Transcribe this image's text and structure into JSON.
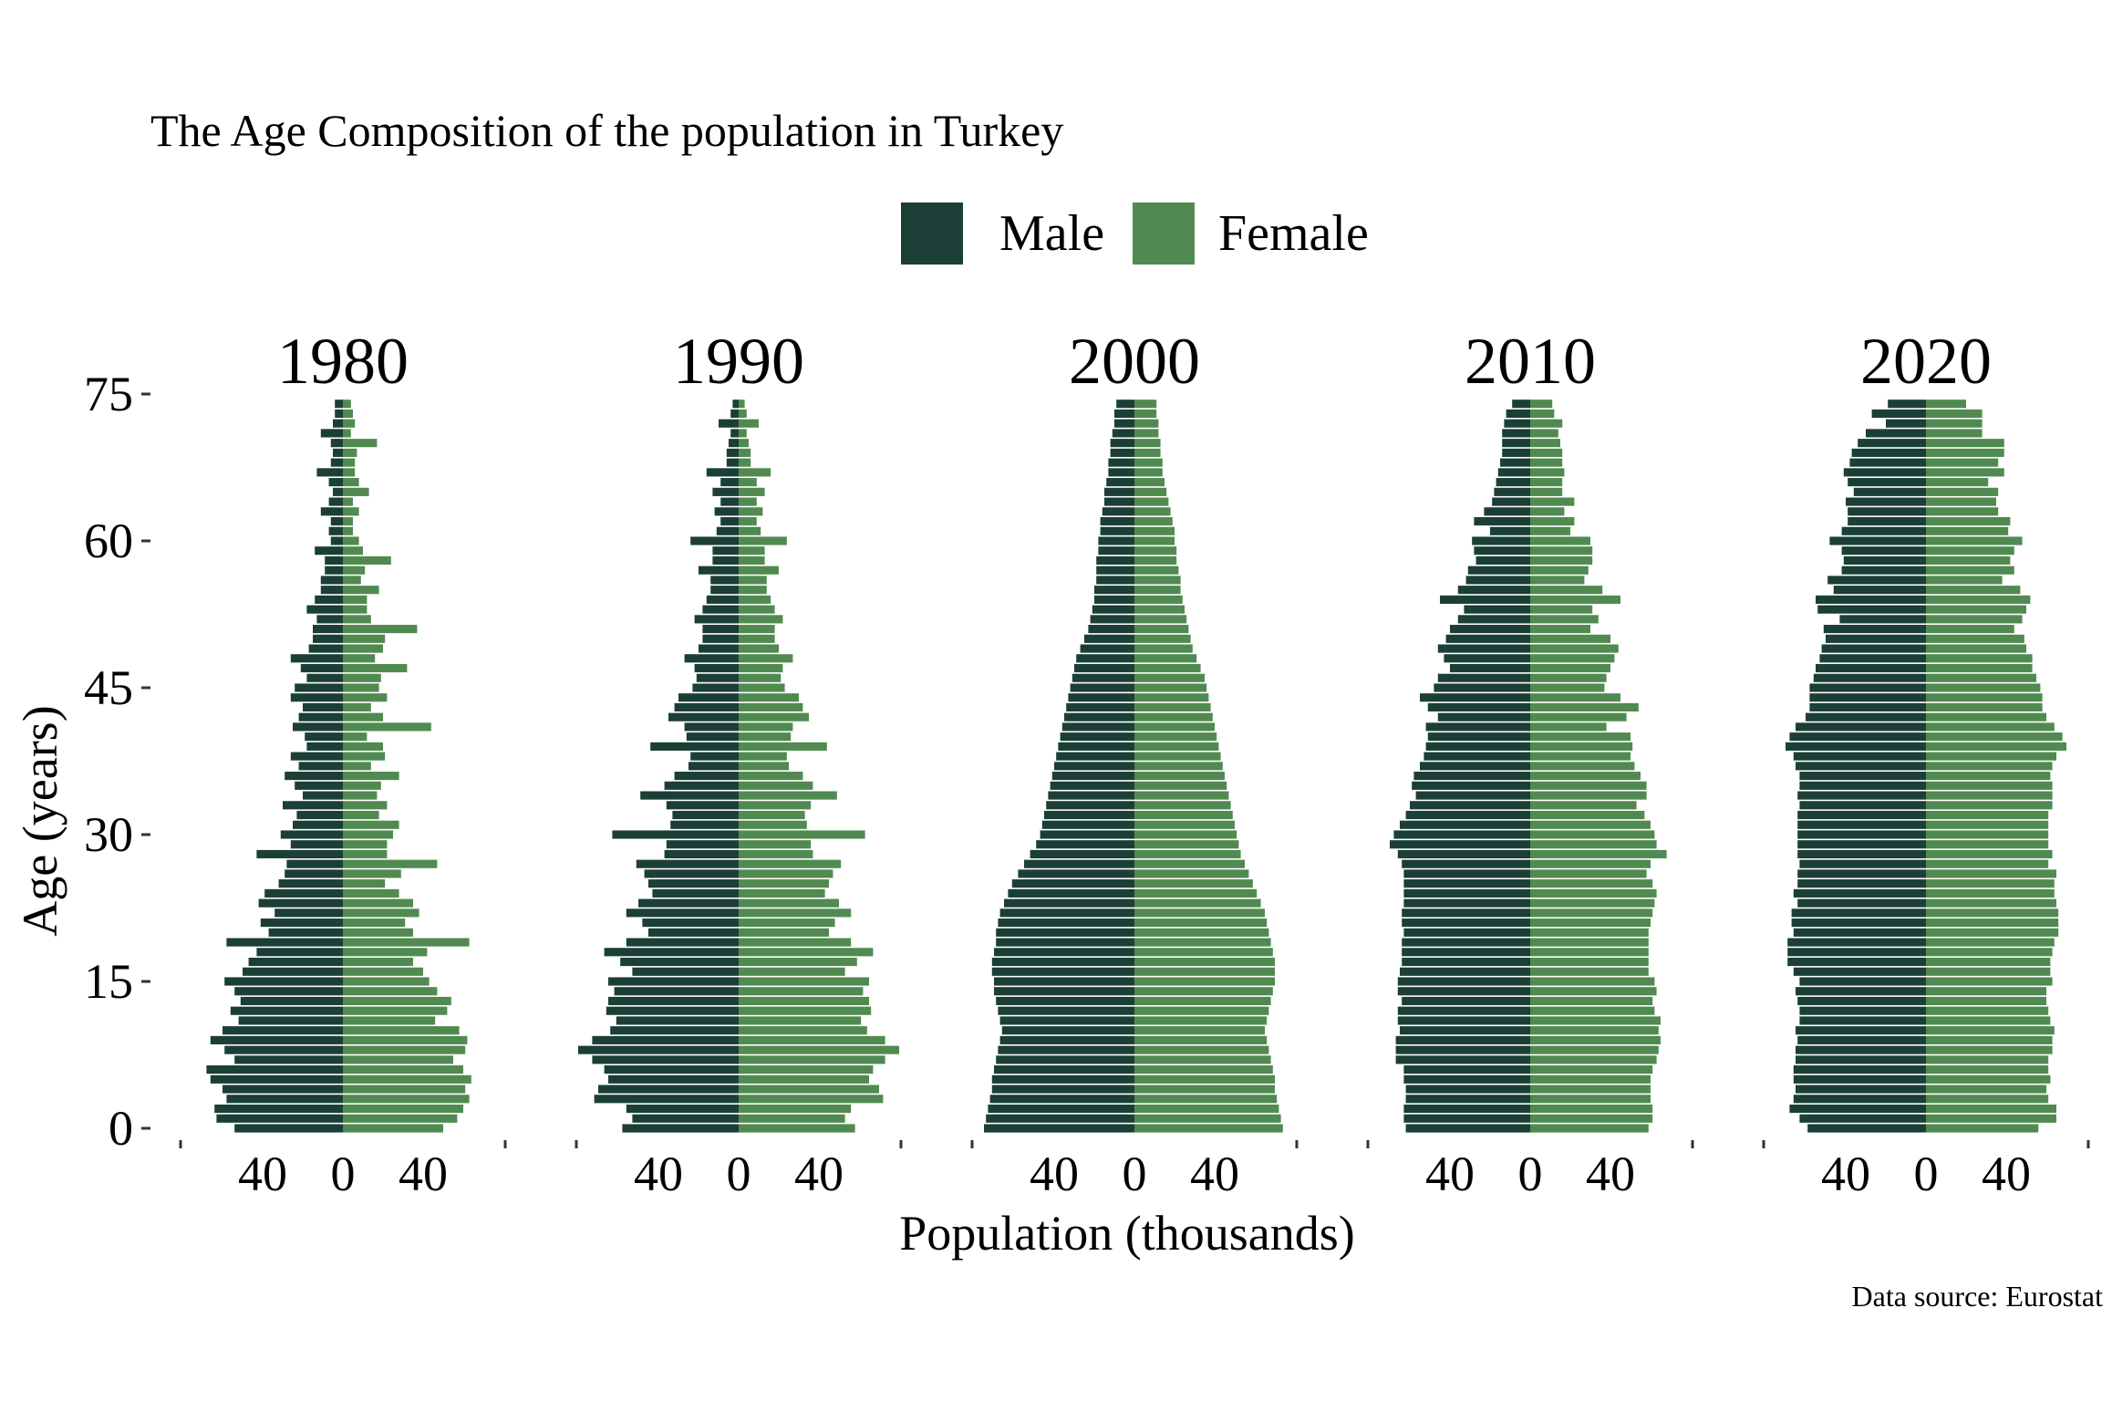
{
  "title": "The Age Composition of the population in Turkey",
  "caption": "Data source: Eurostat",
  "colors": {
    "male": "#1b3f36",
    "female": "#518a51"
  },
  "legend": {
    "placement": "top-center",
    "items": [
      {
        "key": "male",
        "label": "Male"
      },
      {
        "key": "female",
        "label": "Female"
      }
    ]
  },
  "chart_data": {
    "type": "bar",
    "subtype": "population-pyramid",
    "xlabel": "Population (thousands)",
    "ylabel": "Age (years)",
    "y_ticks": [
      "0",
      "15",
      "30",
      "45",
      "60",
      "75"
    ],
    "x_ticks": [
      "40",
      "0",
      "40"
    ],
    "xlim": [
      -80,
      80
    ],
    "ylim": [
      0,
      75
    ],
    "grid": false,
    "age_range": [
      0,
      74
    ],
    "panels": [
      {
        "year": "1980",
        "male": [
          54,
          63,
          64,
          58,
          60,
          66,
          68,
          54,
          59,
          66,
          60,
          52,
          56,
          51,
          54,
          59,
          50,
          47,
          43,
          58,
          37,
          41,
          34,
          42,
          39,
          32,
          29,
          28,
          43,
          26,
          31,
          25,
          23,
          30,
          20,
          24,
          29,
          22,
          26,
          18,
          19,
          25,
          22,
          20,
          26,
          24,
          18,
          21,
          26,
          17,
          15,
          15,
          13,
          18,
          14,
          11,
          11,
          9,
          9,
          14,
          6,
          7,
          6,
          11,
          7,
          5,
          7,
          13,
          6,
          5,
          6,
          11,
          5,
          4,
          4
        ],
        "female": [
          50,
          57,
          60,
          63,
          61,
          64,
          60,
          55,
          61,
          62,
          58,
          46,
          52,
          54,
          47,
          43,
          40,
          35,
          42,
          63,
          35,
          31,
          38,
          35,
          28,
          21,
          29,
          47,
          22,
          22,
          25,
          28,
          18,
          22,
          17,
          19,
          28,
          14,
          21,
          20,
          12,
          44,
          20,
          14,
          22,
          18,
          19,
          32,
          16,
          20,
          21,
          37,
          14,
          12,
          12,
          18,
          9,
          11,
          24,
          10,
          8,
          5,
          5,
          8,
          5,
          13,
          8,
          6,
          6,
          7,
          17,
          4,
          6,
          5,
          4
        ]
      },
      {
        "year": "1990",
        "male": [
          58,
          53,
          56,
          72,
          70,
          65,
          67,
          73,
          80,
          73,
          64,
          61,
          66,
          65,
          62,
          65,
          53,
          59,
          67,
          56,
          45,
          48,
          56,
          50,
          43,
          45,
          47,
          51,
          37,
          36,
          63,
          34,
          33,
          36,
          49,
          37,
          32,
          25,
          24,
          44,
          26,
          27,
          35,
          32,
          30,
          23,
          21,
          22,
          27,
          20,
          18,
          18,
          22,
          18,
          16,
          14,
          14,
          20,
          13,
          13,
          24,
          11,
          9,
          12,
          9,
          13,
          9,
          16,
          6,
          6,
          5,
          4,
          10,
          4,
          3
        ]
      },
      {
        "year": "2000",
        "male": [
          75,
          74,
          73,
          72,
          71,
          71,
          70,
          69,
          68,
          67,
          66,
          67,
          68,
          69,
          70,
          70,
          71,
          71,
          70,
          69,
          69,
          68,
          67,
          65,
          63,
          61,
          58,
          55,
          52,
          49,
          47,
          46,
          45,
          44,
          43,
          42,
          41,
          40,
          39,
          38,
          37,
          36,
          35,
          34,
          33,
          32,
          31,
          30,
          29,
          27,
          25,
          23,
          22,
          21,
          20,
          20,
          19,
          19,
          19,
          18,
          18,
          17,
          17,
          16,
          15,
          15,
          14,
          13,
          13,
          12,
          12,
          11,
          10,
          10,
          9
        ],
        "female": [
          74,
          73,
          72,
          71,
          70,
          70,
          69,
          68,
          67,
          66,
          65,
          66,
          67,
          68,
          69,
          70,
          70,
          70,
          69,
          68,
          67,
          66,
          65,
          63,
          61,
          59,
          57,
          55,
          53,
          52,
          51,
          50,
          49,
          48,
          47,
          46,
          45,
          44,
          43,
          42,
          41,
          40,
          39,
          38,
          37,
          36,
          35,
          33,
          31,
          29,
          28,
          27,
          26,
          25,
          24,
          23,
          23,
          22,
          21,
          21,
          20,
          20,
          19,
          18,
          17,
          16,
          15,
          14,
          14,
          13,
          13,
          12,
          12,
          11,
          11
        ]
      },
      {
        "year": "2010",
        "male": [
          62,
          63,
          63,
          62,
          62,
          63,
          63,
          67,
          67,
          67,
          65,
          66,
          66,
          64,
          66,
          66,
          65,
          64,
          64,
          64,
          63,
          64,
          64,
          63,
          63,
          63,
          63,
          64,
          66,
          70,
          68,
          65,
          62,
          60,
          57,
          59,
          58,
          55,
          53,
          52,
          51,
          52,
          46,
          51,
          55,
          48,
          46,
          40,
          43,
          46,
          42,
          40,
          36,
          33,
          45,
          36,
          32,
          31,
          27,
          28,
          29,
          20,
          28,
          23,
          19,
          18,
          17,
          16,
          15,
          14,
          14,
          14,
          13,
          12,
          9
        ],
        "female": [
          59,
          61,
          61,
          60,
          60,
          60,
          61,
          63,
          64,
          65,
          64,
          65,
          62,
          61,
          63,
          62,
          59,
          59,
          59,
          59,
          59,
          60,
          61,
          62,
          63,
          61,
          58,
          60,
          68,
          63,
          62,
          60,
          57,
          53,
          58,
          58,
          55,
          52,
          50,
          51,
          50,
          38,
          48,
          54,
          45,
          37,
          38,
          40,
          42,
          44,
          40,
          30,
          34,
          31,
          45,
          36,
          27,
          29,
          31,
          31,
          30,
          20,
          22,
          17,
          22,
          16,
          16,
          17,
          16,
          16,
          15,
          14,
          16,
          12,
          11
        ]
      },
      {
        "year": "2020",
        "male": [
          59,
          63,
          68,
          66,
          65,
          66,
          66,
          65,
          65,
          64,
          65,
          63,
          63,
          64,
          65,
          63,
          66,
          69,
          69,
          69,
          66,
          67,
          67,
          64,
          66,
          64,
          64,
          63,
          64,
          64,
          64,
          64,
          64,
          63,
          64,
          63,
          63,
          65,
          66,
          70,
          68,
          65,
          60,
          58,
          58,
          58,
          56,
          55,
          53,
          52,
          50,
          51,
          43,
          54,
          55,
          46,
          49,
          42,
          41,
          42,
          48,
          42,
          39,
          39,
          40,
          36,
          39,
          41,
          38,
          37,
          34,
          30,
          20,
          27,
          19
        ],
        "female": [
          56,
          65,
          65,
          61,
          60,
          62,
          61,
          61,
          63,
          63,
          64,
          62,
          61,
          60,
          60,
          63,
          62,
          62,
          63,
          64,
          66,
          66,
          66,
          65,
          64,
          64,
          65,
          61,
          63,
          61,
          61,
          61,
          61,
          63,
          63,
          63,
          62,
          63,
          65,
          70,
          68,
          64,
          60,
          58,
          58,
          57,
          55,
          53,
          53,
          50,
          49,
          44,
          48,
          50,
          52,
          47,
          38,
          44,
          42,
          44,
          48,
          41,
          42,
          36,
          35,
          36,
          31,
          39,
          36,
          39,
          39,
          28,
          28,
          28,
          20
        ]
      }
    ]
  }
}
